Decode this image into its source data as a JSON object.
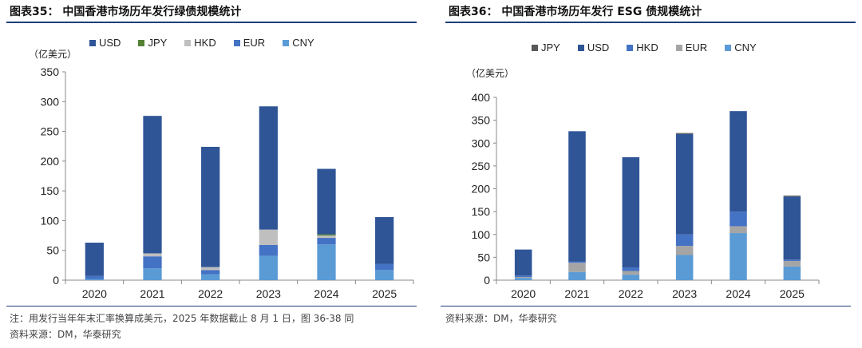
{
  "left": {
    "title": "图表35：  中国香港市场历年发行绿债规模统计",
    "unit": "（亿美元）",
    "note1": "注：用发行当年年末汇率换算成美元，2025 年数据截止 8 月 1 日，图 36-38 同",
    "note2": "资料来源：DM，华泰研究"
  },
  "right": {
    "title": "图表36：  中国香港市场历年发行 ESG 债规模统计",
    "unit": "（亿美元）",
    "note1": "资料来源：DM，华泰研究"
  },
  "chart_data": [
    {
      "type": "bar",
      "stacked": true,
      "title": "中国香港市场历年发行绿债规模统计",
      "ylabel": "（亿美元）",
      "ylim": [
        0,
        350
      ],
      "yticks": [
        0,
        50,
        100,
        150,
        200,
        250,
        300,
        350
      ],
      "categories": [
        "2020",
        "2021",
        "2022",
        "2023",
        "2024",
        "2025"
      ],
      "legend_order": [
        "USD",
        "JPY",
        "HKD",
        "EUR",
        "CNY"
      ],
      "series": [
        {
          "name": "CNY",
          "color": "#5b9bd5",
          "values": [
            2,
            20,
            10,
            41,
            60,
            17
          ]
        },
        {
          "name": "EUR",
          "color": "#4472c4",
          "values": [
            5,
            20,
            7,
            18,
            11,
            10
          ]
        },
        {
          "name": "HKD",
          "color": "#bfbfbf",
          "values": [
            0,
            5,
            5,
            26,
            4,
            0
          ]
        },
        {
          "name": "JPY",
          "color": "#548235",
          "values": [
            0,
            0,
            0,
            0,
            2,
            0
          ]
        },
        {
          "name": "USD",
          "color": "#2f5597",
          "values": [
            56,
            231,
            202,
            207,
            110,
            79
          ]
        }
      ],
      "grid": false,
      "legend_position": "top"
    },
    {
      "type": "bar",
      "stacked": true,
      "title": "中国香港市场历年发行 ESG 债规模统计",
      "ylabel": "（亿美元）",
      "ylim": [
        0,
        400
      ],
      "yticks": [
        0,
        50,
        100,
        150,
        200,
        250,
        300,
        350,
        400
      ],
      "categories": [
        "2020",
        "2021",
        "2022",
        "2023",
        "2024",
        "2025"
      ],
      "legend_order": [
        "JPY",
        "USD",
        "HKD",
        "EUR",
        "CNY"
      ],
      "series": [
        {
          "name": "CNY",
          "color": "#5b9bd5",
          "values": [
            5,
            18,
            12,
            55,
            103,
            30
          ]
        },
        {
          "name": "EUR",
          "color": "#a5a5a5",
          "values": [
            2,
            20,
            8,
            20,
            15,
            12
          ]
        },
        {
          "name": "HKD",
          "color": "#4472c4",
          "values": [
            3,
            3,
            8,
            25,
            32,
            3
          ]
        },
        {
          "name": "USD",
          "color": "#2f5597",
          "values": [
            57,
            285,
            241,
            220,
            220,
            138
          ]
        },
        {
          "name": "JPY",
          "color": "#595959",
          "values": [
            0,
            0,
            0,
            2,
            0,
            2
          ]
        }
      ],
      "grid": false,
      "legend_position": "top"
    }
  ]
}
